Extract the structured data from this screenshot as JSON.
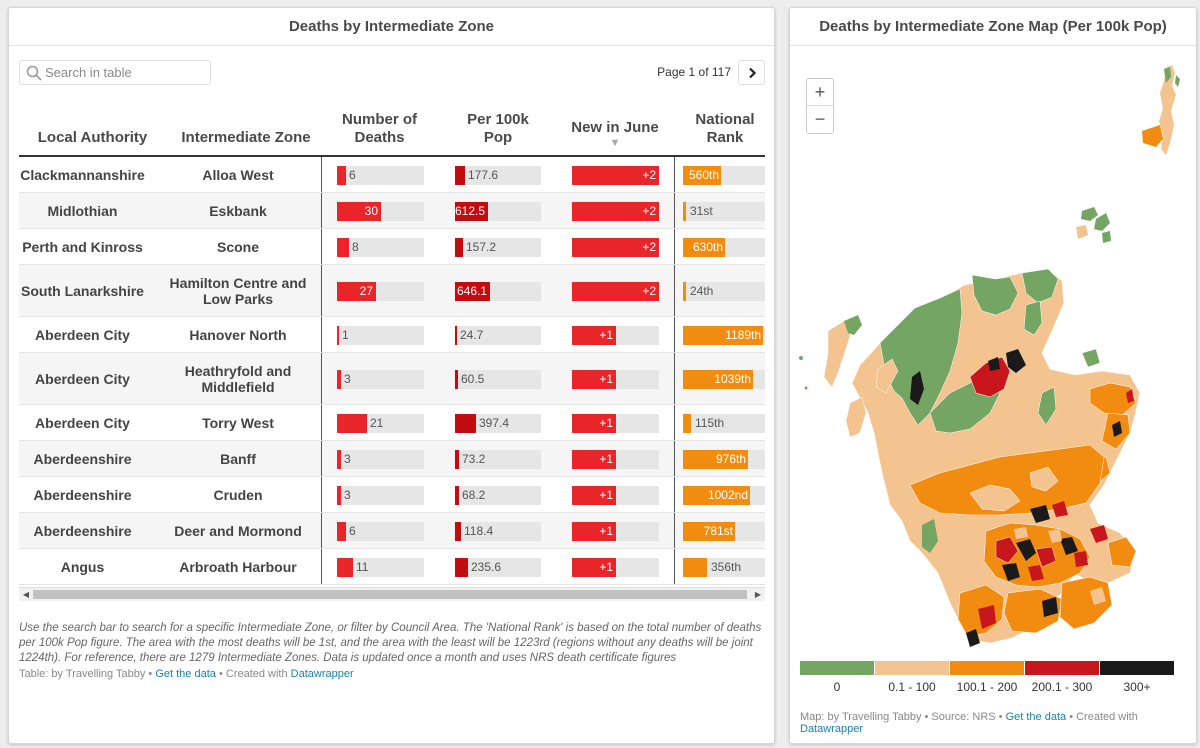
{
  "left_panel": {
    "title": "Deaths by Intermediate Zone",
    "search": {
      "placeholder": "Search in table",
      "value": ""
    },
    "pager": {
      "text": "Page 1 of 117",
      "next_icon": "chevron-right-icon"
    },
    "columns": {
      "local_authority": "Local Authority",
      "intermediate_zone": "Intermediate Zone",
      "number_of_deaths": "Number of Deaths",
      "per_100k_line1": "Per 100k",
      "per_100k_line2": "Pop",
      "new_in_june": "New in June",
      "sort_icon": "▼",
      "national_rank": "National Rank"
    },
    "rows": [
      {
        "la": "Clackmannanshire",
        "iz": "Alloa West",
        "deaths": "6",
        "deaths_val": 6,
        "per100k": "177.6",
        "per100k_val": 177.6,
        "new": "+2",
        "new_val": 2,
        "rank": "560th",
        "rank_val": 560
      },
      {
        "la": "Midlothian",
        "iz": "Eskbank",
        "deaths": "30",
        "deaths_val": 30,
        "per100k": "612.5",
        "per100k_val": 612.5,
        "new": "+2",
        "new_val": 2,
        "rank": "31st",
        "rank_val": 31
      },
      {
        "la": "Perth and Kinross",
        "iz": "Scone",
        "deaths": "8",
        "deaths_val": 8,
        "per100k": "157.2",
        "per100k_val": 157.2,
        "new": "+2",
        "new_val": 2,
        "rank": "630th",
        "rank_val": 630
      },
      {
        "la": "South Lanarkshire",
        "iz": "Hamilton Centre and Low Parks",
        "deaths": "27",
        "deaths_val": 27,
        "per100k": "646.1",
        "per100k_val": 646.1,
        "new": "+2",
        "new_val": 2,
        "rank": "24th",
        "rank_val": 24
      },
      {
        "la": "Aberdeen City",
        "iz": "Hanover North",
        "deaths": "1",
        "deaths_val": 1,
        "per100k": "24.7",
        "per100k_val": 24.7,
        "new": "+1",
        "new_val": 1,
        "rank": "1189th",
        "rank_val": 1189
      },
      {
        "la": "Aberdeen City",
        "iz": "Heathryfold and Middlefield",
        "deaths": "3",
        "deaths_val": 3,
        "per100k": "60.5",
        "per100k_val": 60.5,
        "new": "+1",
        "new_val": 1,
        "rank": "1039th",
        "rank_val": 1039
      },
      {
        "la": "Aberdeen City",
        "iz": "Torry West",
        "deaths": "21",
        "deaths_val": 21,
        "per100k": "397.4",
        "per100k_val": 397.4,
        "new": "+1",
        "new_val": 1,
        "rank": "115th",
        "rank_val": 115
      },
      {
        "la": "Aberdeenshire",
        "iz": "Banff",
        "deaths": "3",
        "deaths_val": 3,
        "per100k": "73.2",
        "per100k_val": 73.2,
        "new": "+1",
        "new_val": 1,
        "rank": "976th",
        "rank_val": 976
      },
      {
        "la": "Aberdeenshire",
        "iz": "Cruden",
        "deaths": "3",
        "deaths_val": 3,
        "per100k": "68.2",
        "per100k_val": 68.2,
        "new": "+1",
        "new_val": 1,
        "rank": "1002nd",
        "rank_val": 1002
      },
      {
        "la": "Aberdeenshire",
        "iz": "Deer and Mormond",
        "deaths": "6",
        "deaths_val": 6,
        "per100k": "118.4",
        "per100k_val": 118.4,
        "new": "+1",
        "new_val": 1,
        "rank": "781st",
        "rank_val": 781
      },
      {
        "la": "Angus",
        "iz": "Arbroath Harbour",
        "deaths": "11",
        "deaths_val": 11,
        "per100k": "235.6",
        "per100k_val": 235.6,
        "new": "+1",
        "new_val": 1,
        "rank": "356th",
        "rank_val": 356
      }
    ],
    "notes": "Use the search bar to search for a specific Intermediate Zone, or filter by Council Area. The 'National Rank' is based on the total number of deaths per 100k Pop figure. The area with the most deaths will be 1st, and the area with the least will be 1223rd (regions without any deaths will be joint 1224th). For reference, there are 1279 Intermediate Zones. Data is updated once a month and uses NRS death certificate figures",
    "footer": {
      "prefix": "Table: by Travelling Tabby • ",
      "get_data": "Get the data",
      "middle": " • Created with ",
      "datawrapper": "Datawrapper"
    }
  },
  "right_panel": {
    "title": "Deaths by Intermediate Zone Map (Per 100k Pop)",
    "zoom_in": "+",
    "zoom_out": "−",
    "legend": [
      {
        "label": "0",
        "color": "#74a563"
      },
      {
        "label": "0.1 - 100",
        "color": "#f3c48f"
      },
      {
        "label": "100.1 - 200",
        "color": "#f28c10"
      },
      {
        "label": "200.1 - 300",
        "color": "#c8161d"
      },
      {
        "label": "300+",
        "color": "#1a1a1a"
      }
    ],
    "footer": {
      "prefix": "Map: by Travelling Tabby • Source: NRS • ",
      "get_data": "Get the data",
      "middle": " • Created with ",
      "datawrapper": "Datawrapper"
    }
  },
  "colors": {
    "deaths_bar": "#e8262a",
    "per100k_bar": "#c20c10",
    "new_bar": "#e8262a",
    "rank_bar": "#f28c10",
    "track": "#e6e6e6",
    "link": "#1d81a2"
  }
}
